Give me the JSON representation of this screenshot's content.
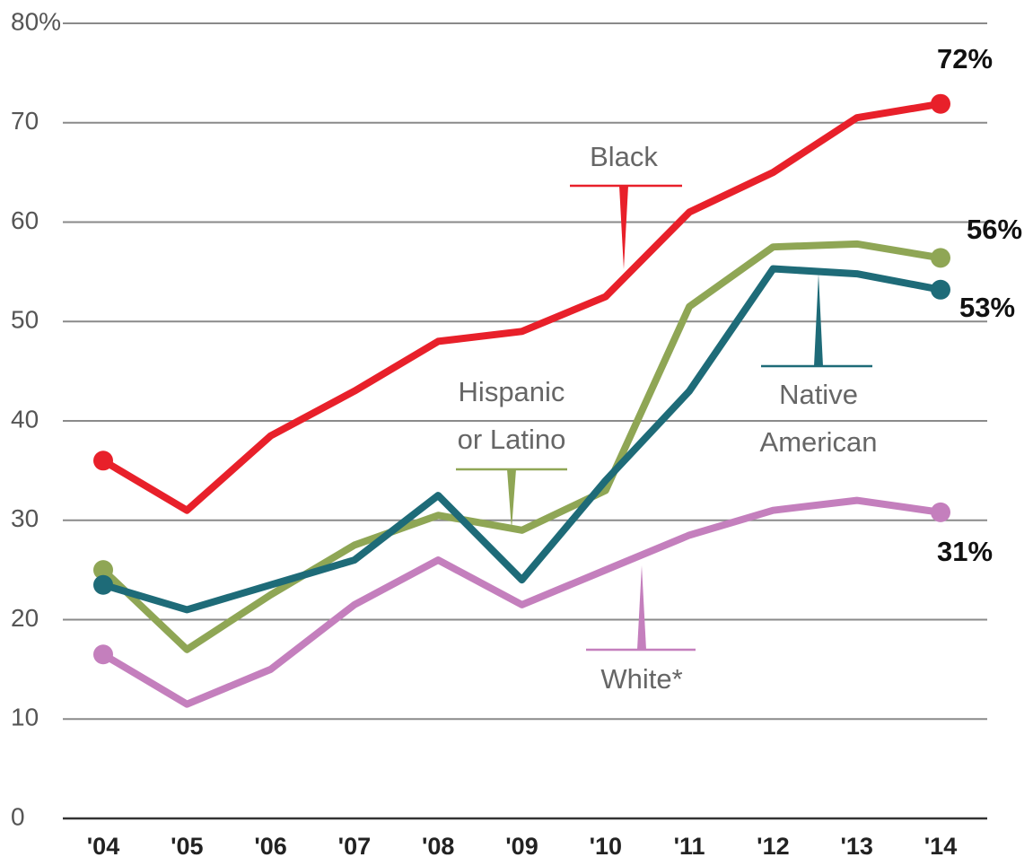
{
  "chart_data": {
    "type": "line",
    "categories": [
      "'04",
      "'05",
      "'06",
      "'07",
      "'08",
      "'09",
      "'10",
      "'11",
      "'12",
      "'13",
      "'14"
    ],
    "series": [
      {
        "name": "Black",
        "color": "#e8202a",
        "values": [
          36,
          31,
          38.5,
          43,
          48,
          49,
          52.5,
          61,
          65,
          70.5,
          71.9
        ],
        "value_labels": [
          null,
          null,
          null,
          null,
          null,
          null,
          null,
          null,
          null,
          null,
          "72%"
        ]
      },
      {
        "name": "Hispanic or Latino",
        "color": "#8fa655",
        "values": [
          25,
          17,
          22.5,
          27.5,
          30.5,
          29,
          33,
          51.5,
          57.5,
          57.8,
          56.4
        ],
        "value_labels": [
          null,
          null,
          null,
          null,
          null,
          null,
          null,
          null,
          null,
          null,
          "56%"
        ]
      },
      {
        "name": "Native American",
        "color": "#1e6b78",
        "values": [
          23.5,
          21,
          23.5,
          26,
          32.5,
          24,
          34,
          43,
          55.3,
          54.8,
          53.2
        ],
        "value_labels": [
          null,
          null,
          null,
          null,
          null,
          null,
          null,
          null,
          null,
          null,
          "53%"
        ]
      },
      {
        "name": "White*",
        "color": "#c47fbd",
        "values": [
          16.5,
          11.5,
          15,
          21.5,
          26,
          21.5,
          25,
          28.5,
          31,
          32,
          30.8
        ],
        "value_labels": [
          null,
          null,
          null,
          null,
          null,
          null,
          null,
          null,
          null,
          null,
          "31%"
        ]
      }
    ],
    "ylim": [
      0,
      80
    ],
    "yticks": [
      0,
      10,
      20,
      30,
      40,
      50,
      60,
      70,
      {
        "value": 80,
        "label": "80%"
      }
    ],
    "grid": true
  }
}
